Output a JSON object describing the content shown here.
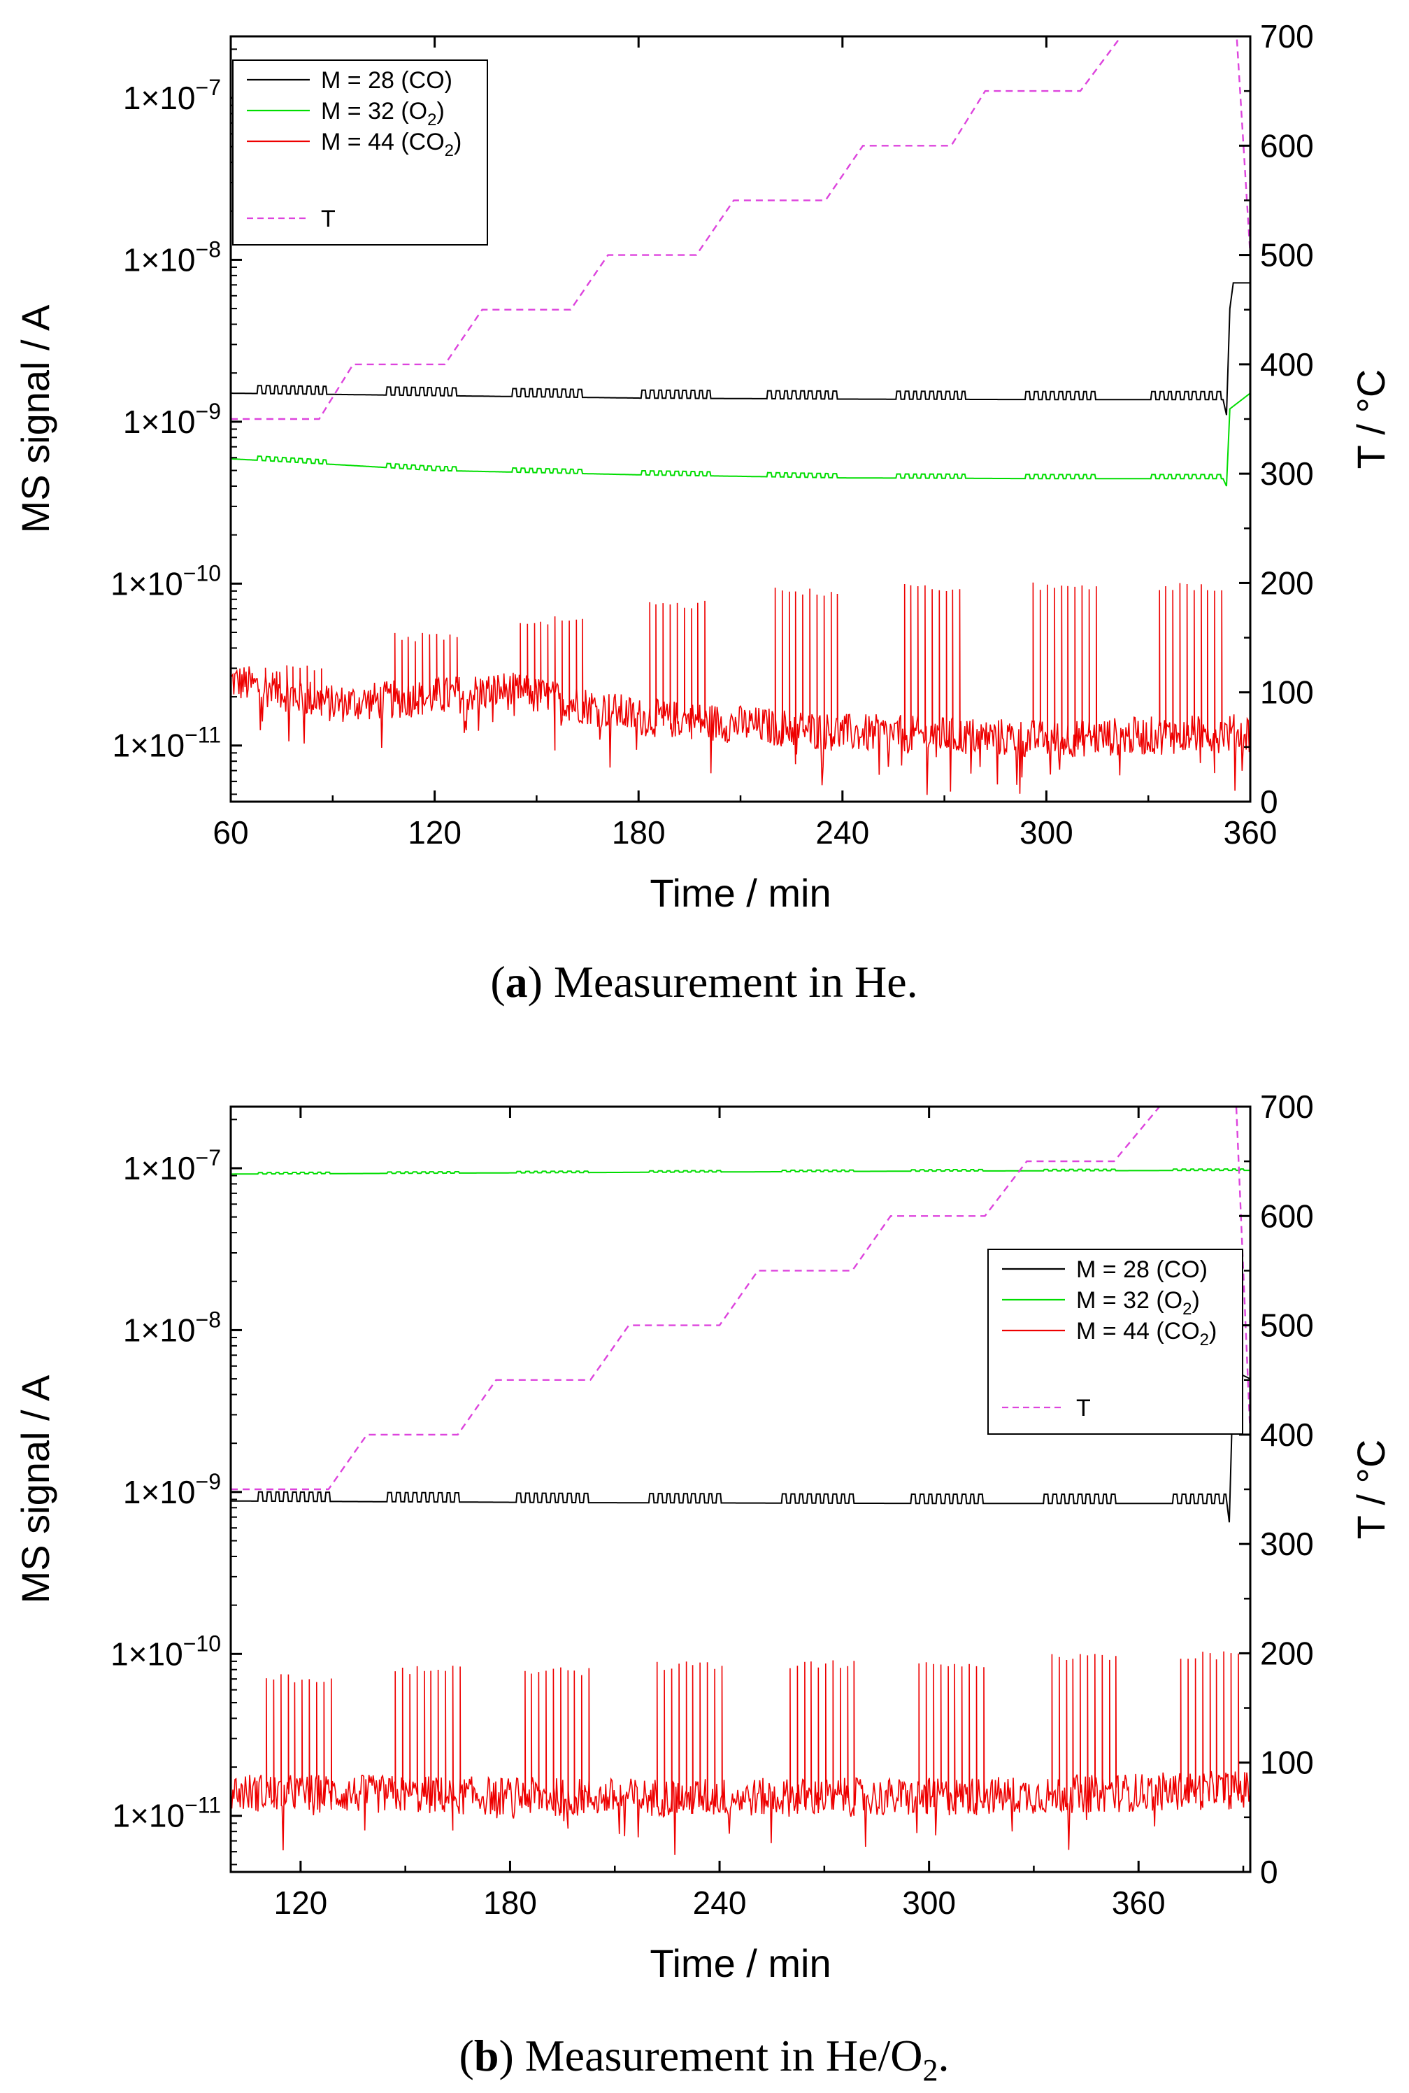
{
  "chart_data": [
    {
      "type": "line",
      "panel": "a",
      "caption_label": "a",
      "caption_text": "Measurement in He.",
      "xlabel": "Time / min",
      "ylabel_left": "MS signal / A",
      "ylabel_right": "T / °C",
      "x_range": [
        60,
        360
      ],
      "x_ticks": [
        60,
        120,
        180,
        240,
        300,
        360
      ],
      "x_tick_labels": [
        "60",
        "120",
        "180",
        "240",
        "300",
        "360"
      ],
      "y_left_scale": "log",
      "y_left_range": [
        4.5e-12,
        2.4e-07
      ],
      "y_left_ticks": [
        1e-11,
        1e-10,
        1e-09,
        1e-08,
        1e-07
      ],
      "y_left_tick_labels": [
        {
          "mantissa": "1×10",
          "exp": "−11"
        },
        {
          "mantissa": "1×10",
          "exp": "−10"
        },
        {
          "mantissa": "1×10",
          "exp": "−9"
        },
        {
          "mantissa": "1×10",
          "exp": "−8"
        },
        {
          "mantissa": "1×10",
          "exp": "−7"
        }
      ],
      "y_right_range": [
        0,
        700
      ],
      "y_right_ticks": [
        0,
        100,
        200,
        300,
        400,
        500,
        600,
        700
      ],
      "y_right_tick_labels": [
        "0",
        "100",
        "200",
        "300",
        "400",
        "500",
        "600",
        "700"
      ],
      "legend_position": "top-left",
      "legend": [
        {
          "base": "M = 28 (CO)",
          "sub": "",
          "tail": "",
          "color": "#000000",
          "dash": "solid"
        },
        {
          "base": "M = 32 (O",
          "sub": "2",
          "tail": ")",
          "color": "#00dd00",
          "dash": "solid"
        },
        {
          "base": "M = 44 (CO",
          "sub": "2",
          "tail": ")",
          "color": "#ee0000",
          "dash": "solid"
        },
        {
          "base": "T",
          "sub": "",
          "tail": "",
          "color": "#dd44dd",
          "dash": "dashed"
        }
      ],
      "series": [
        {
          "name": "M = 28 (CO)",
          "color": "#000000",
          "axis": "left",
          "baseline": [
            [
              60,
              1.5e-09
            ],
            [
              120,
              1.45e-09
            ],
            [
              180,
              1.4e-09
            ],
            [
              240,
              1.38e-09
            ],
            [
              300,
              1.37e-09
            ],
            [
              352,
              1.37e-09
            ]
          ],
          "oscillation_amp_ratio": 1.12,
          "end": [
            [
              353,
              1.1e-09
            ],
            [
              354,
              5e-09
            ],
            [
              355,
              7.2e-09
            ],
            [
              360,
              7.2e-09
            ]
          ]
        },
        {
          "name": "M = 32 (O2)",
          "color": "#00dd00",
          "axis": "left",
          "baseline": [
            [
              60,
              5.9e-10
            ],
            [
              120,
              5e-10
            ],
            [
              180,
              4.7e-10
            ],
            [
              240,
              4.5e-10
            ],
            [
              300,
              4.45e-10
            ],
            [
              352,
              4.45e-10
            ]
          ],
          "oscillation_amp_ratio": 1.06,
          "end": [
            [
              353,
              4e-10
            ],
            [
              354,
              1.2e-09
            ],
            [
              360,
              1.5e-09
            ]
          ]
        },
        {
          "name": "M = 44 (CO2)",
          "color": "#ee0000",
          "axis": "left",
          "noise_baseline": [
            [
              60,
              2.5e-11
            ],
            [
              90,
              1.8e-11
            ],
            [
              120,
              2e-11
            ],
            [
              140,
              2.2e-11
            ],
            [
              180,
              1.5e-11
            ],
            [
              240,
              1.2e-11
            ],
            [
              300,
              1.1e-11
            ],
            [
              360,
              1.2e-11
            ]
          ],
          "noise_spread": 0.12,
          "spike_groups": [
            {
              "start": 68,
              "end": 88,
              "peak": 3.2e-11
            },
            {
              "start": 106,
              "end": 127,
              "peak": 5e-11
            },
            {
              "start": 143,
              "end": 164,
              "peak": 6.3e-11
            },
            {
              "start": 181,
              "end": 201,
              "peak": 8e-11
            },
            {
              "start": 218,
              "end": 239,
              "peak": 9.5e-11
            },
            {
              "start": 256,
              "end": 276,
              "peak": 1e-10
            },
            {
              "start": 294,
              "end": 315,
              "peak": 1.02e-10
            },
            {
              "start": 331,
              "end": 352,
              "peak": 1.02e-10
            }
          ]
        },
        {
          "name": "T",
          "color": "#dd44dd",
          "axis": "right",
          "dashed": true,
          "points": [
            [
              60,
              350
            ],
            [
              86,
              350
            ],
            [
              96,
              400
            ],
            [
              123,
              400
            ],
            [
              134,
              450
            ],
            [
              160,
              450
            ],
            [
              171,
              500
            ],
            [
              197,
              500
            ],
            [
              208,
              550
            ],
            [
              235,
              550
            ],
            [
              246,
              600
            ],
            [
              272,
              600
            ],
            [
              282,
              650
            ],
            [
              310,
              650
            ],
            [
              322,
              700
            ],
            [
              356,
              700
            ],
            [
              360,
              500
            ]
          ]
        }
      ]
    },
    {
      "type": "line",
      "panel": "b",
      "caption_label": "b",
      "caption_text": "Measurement in He/O",
      "caption_sub": "2",
      "caption_tail": ".",
      "xlabel": "Time / min",
      "ylabel_left": "MS signal / A",
      "ylabel_right": "T / °C",
      "x_range": [
        100,
        392
      ],
      "x_ticks": [
        120,
        180,
        240,
        300,
        360
      ],
      "x_tick_labels": [
        "120",
        "180",
        "240",
        "300",
        "360"
      ],
      "y_left_scale": "log",
      "y_left_range": [
        4.5e-12,
        2.4e-07
      ],
      "y_left_ticks": [
        1e-11,
        1e-10,
        1e-09,
        1e-08,
        1e-07
      ],
      "y_left_tick_labels": [
        {
          "mantissa": "1×10",
          "exp": "−11"
        },
        {
          "mantissa": "1×10",
          "exp": "−10"
        },
        {
          "mantissa": "1×10",
          "exp": "−9"
        },
        {
          "mantissa": "1×10",
          "exp": "−8"
        },
        {
          "mantissa": "1×10",
          "exp": "−7"
        }
      ],
      "y_right_range": [
        0,
        700
      ],
      "y_right_ticks": [
        0,
        100,
        200,
        300,
        400,
        500,
        600,
        700
      ],
      "y_right_tick_labels": [
        "0",
        "100",
        "200",
        "300",
        "400",
        "500",
        "600",
        "700"
      ],
      "legend_position": "right",
      "legend": [
        {
          "base": "M = 28 (CO)",
          "sub": "",
          "tail": "",
          "color": "#000000",
          "dash": "solid"
        },
        {
          "base": "M = 32 (O",
          "sub": "2",
          "tail": ")",
          "color": "#00dd00",
          "dash": "solid"
        },
        {
          "base": "M = 44 (CO",
          "sub": "2",
          "tail": ")",
          "color": "#ee0000",
          "dash": "solid"
        },
        {
          "base": "T",
          "sub": "",
          "tail": "",
          "color": "#dd44dd",
          "dash": "dashed"
        }
      ],
      "series": [
        {
          "name": "M = 28 (CO)",
          "color": "#000000",
          "axis": "left",
          "baseline": [
            [
              100,
              8.8e-10
            ],
            [
              200,
              8.6e-10
            ],
            [
              300,
              8.5e-10
            ],
            [
              385,
              8.5e-10
            ]
          ],
          "oscillation_amp_ratio": 1.14,
          "end": [
            [
              386,
              6.5e-10
            ],
            [
              387,
              4e-09
            ],
            [
              388,
              5.5e-09
            ],
            [
              392,
              5e-09
            ]
          ]
        },
        {
          "name": "M = 32 (O2)",
          "color": "#00dd00",
          "axis": "left",
          "baseline": [
            [
              100,
              9.2e-08
            ],
            [
              200,
              9.4e-08
            ],
            [
              300,
              9.6e-08
            ],
            [
              392,
              9.7e-08
            ]
          ],
          "oscillation_amp_ratio": 1.02,
          "end": []
        },
        {
          "name": "M = 44 (CO2)",
          "color": "#ee0000",
          "axis": "left",
          "noise_baseline": [
            [
              100,
              1.4e-11
            ],
            [
              200,
              1.3e-11
            ],
            [
              300,
              1.3e-11
            ],
            [
              392,
              1.45e-11
            ]
          ],
          "noise_spread": 0.12,
          "spike_groups": [
            {
              "start": 108,
              "end": 129,
              "peak": 7.5e-11
            },
            {
              "start": 145,
              "end": 166,
              "peak": 8.5e-11
            },
            {
              "start": 182,
              "end": 203,
              "peak": 8.3e-11
            },
            {
              "start": 220,
              "end": 241,
              "peak": 9e-11
            },
            {
              "start": 258,
              "end": 279,
              "peak": 9.2e-11
            },
            {
              "start": 295,
              "end": 316,
              "peak": 9.3e-11
            },
            {
              "start": 333,
              "end": 354,
              "peak": 1e-10
            },
            {
              "start": 370,
              "end": 390,
              "peak": 1.05e-10
            }
          ]
        },
        {
          "name": "T",
          "color": "#dd44dd",
          "axis": "right",
          "dashed": true,
          "points": [
            [
              100,
              350
            ],
            [
              128,
              350
            ],
            [
              139,
              400
            ],
            [
              165,
              400
            ],
            [
              176,
              450
            ],
            [
              203,
              450
            ],
            [
              214,
              500
            ],
            [
              240,
              500
            ],
            [
              251,
              550
            ],
            [
              278,
              550
            ],
            [
              289,
              600
            ],
            [
              316,
              600
            ],
            [
              328,
              650
            ],
            [
              353,
              650
            ],
            [
              366,
              700
            ],
            [
              388,
              700
            ],
            [
              392,
              400
            ]
          ]
        }
      ]
    }
  ]
}
